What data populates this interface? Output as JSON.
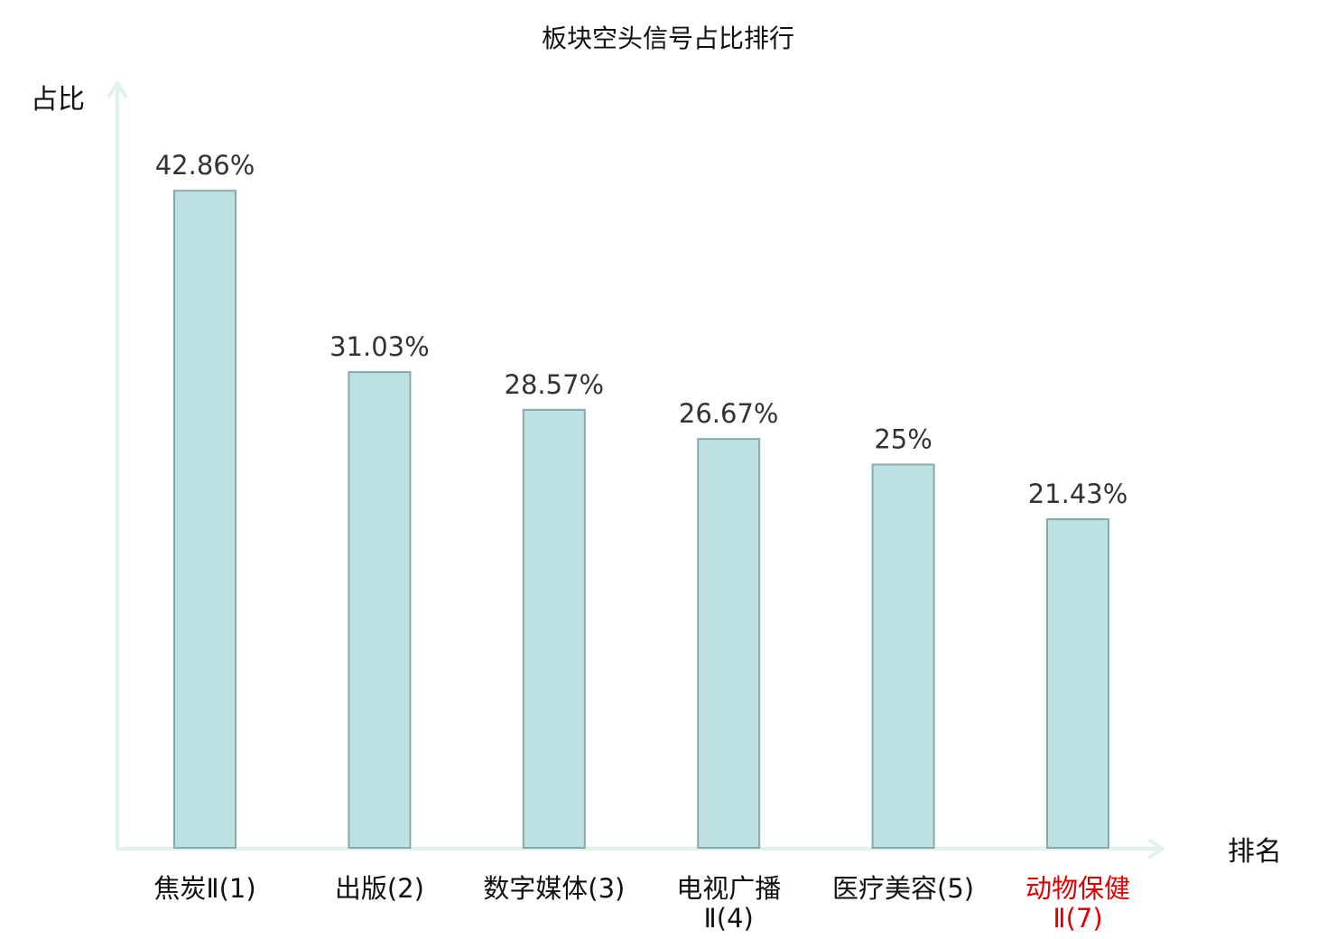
{
  "chart_data": {
    "type": "bar",
    "title": "板块空头信号占比排行",
    "ylabel": "占比",
    "xlabel": "排名",
    "ylim": [
      0,
      50
    ],
    "grid": false,
    "categories": [
      [
        "焦炭Ⅱ(1)"
      ],
      [
        "出版(2)"
      ],
      [
        "数字媒体(3)"
      ],
      [
        "电视广播",
        "Ⅱ(4)"
      ],
      [
        "医疗美容(5)"
      ],
      [
        "动物保健",
        "Ⅱ(7)"
      ]
    ],
    "values": [
      42.86,
      31.03,
      28.57,
      26.67,
      25,
      21.43
    ],
    "value_labels": [
      "42.86%",
      "31.03%",
      "28.57%",
      "26.67%",
      "25%",
      "21.43%"
    ],
    "highlight_index": 5,
    "colors": {
      "bar_fill": "#bde0e3",
      "bar_stroke": "#86a9ac",
      "axis": "#dff2ef",
      "text": "#111111",
      "value_text": "#333333",
      "highlight": "#e00000"
    }
  }
}
